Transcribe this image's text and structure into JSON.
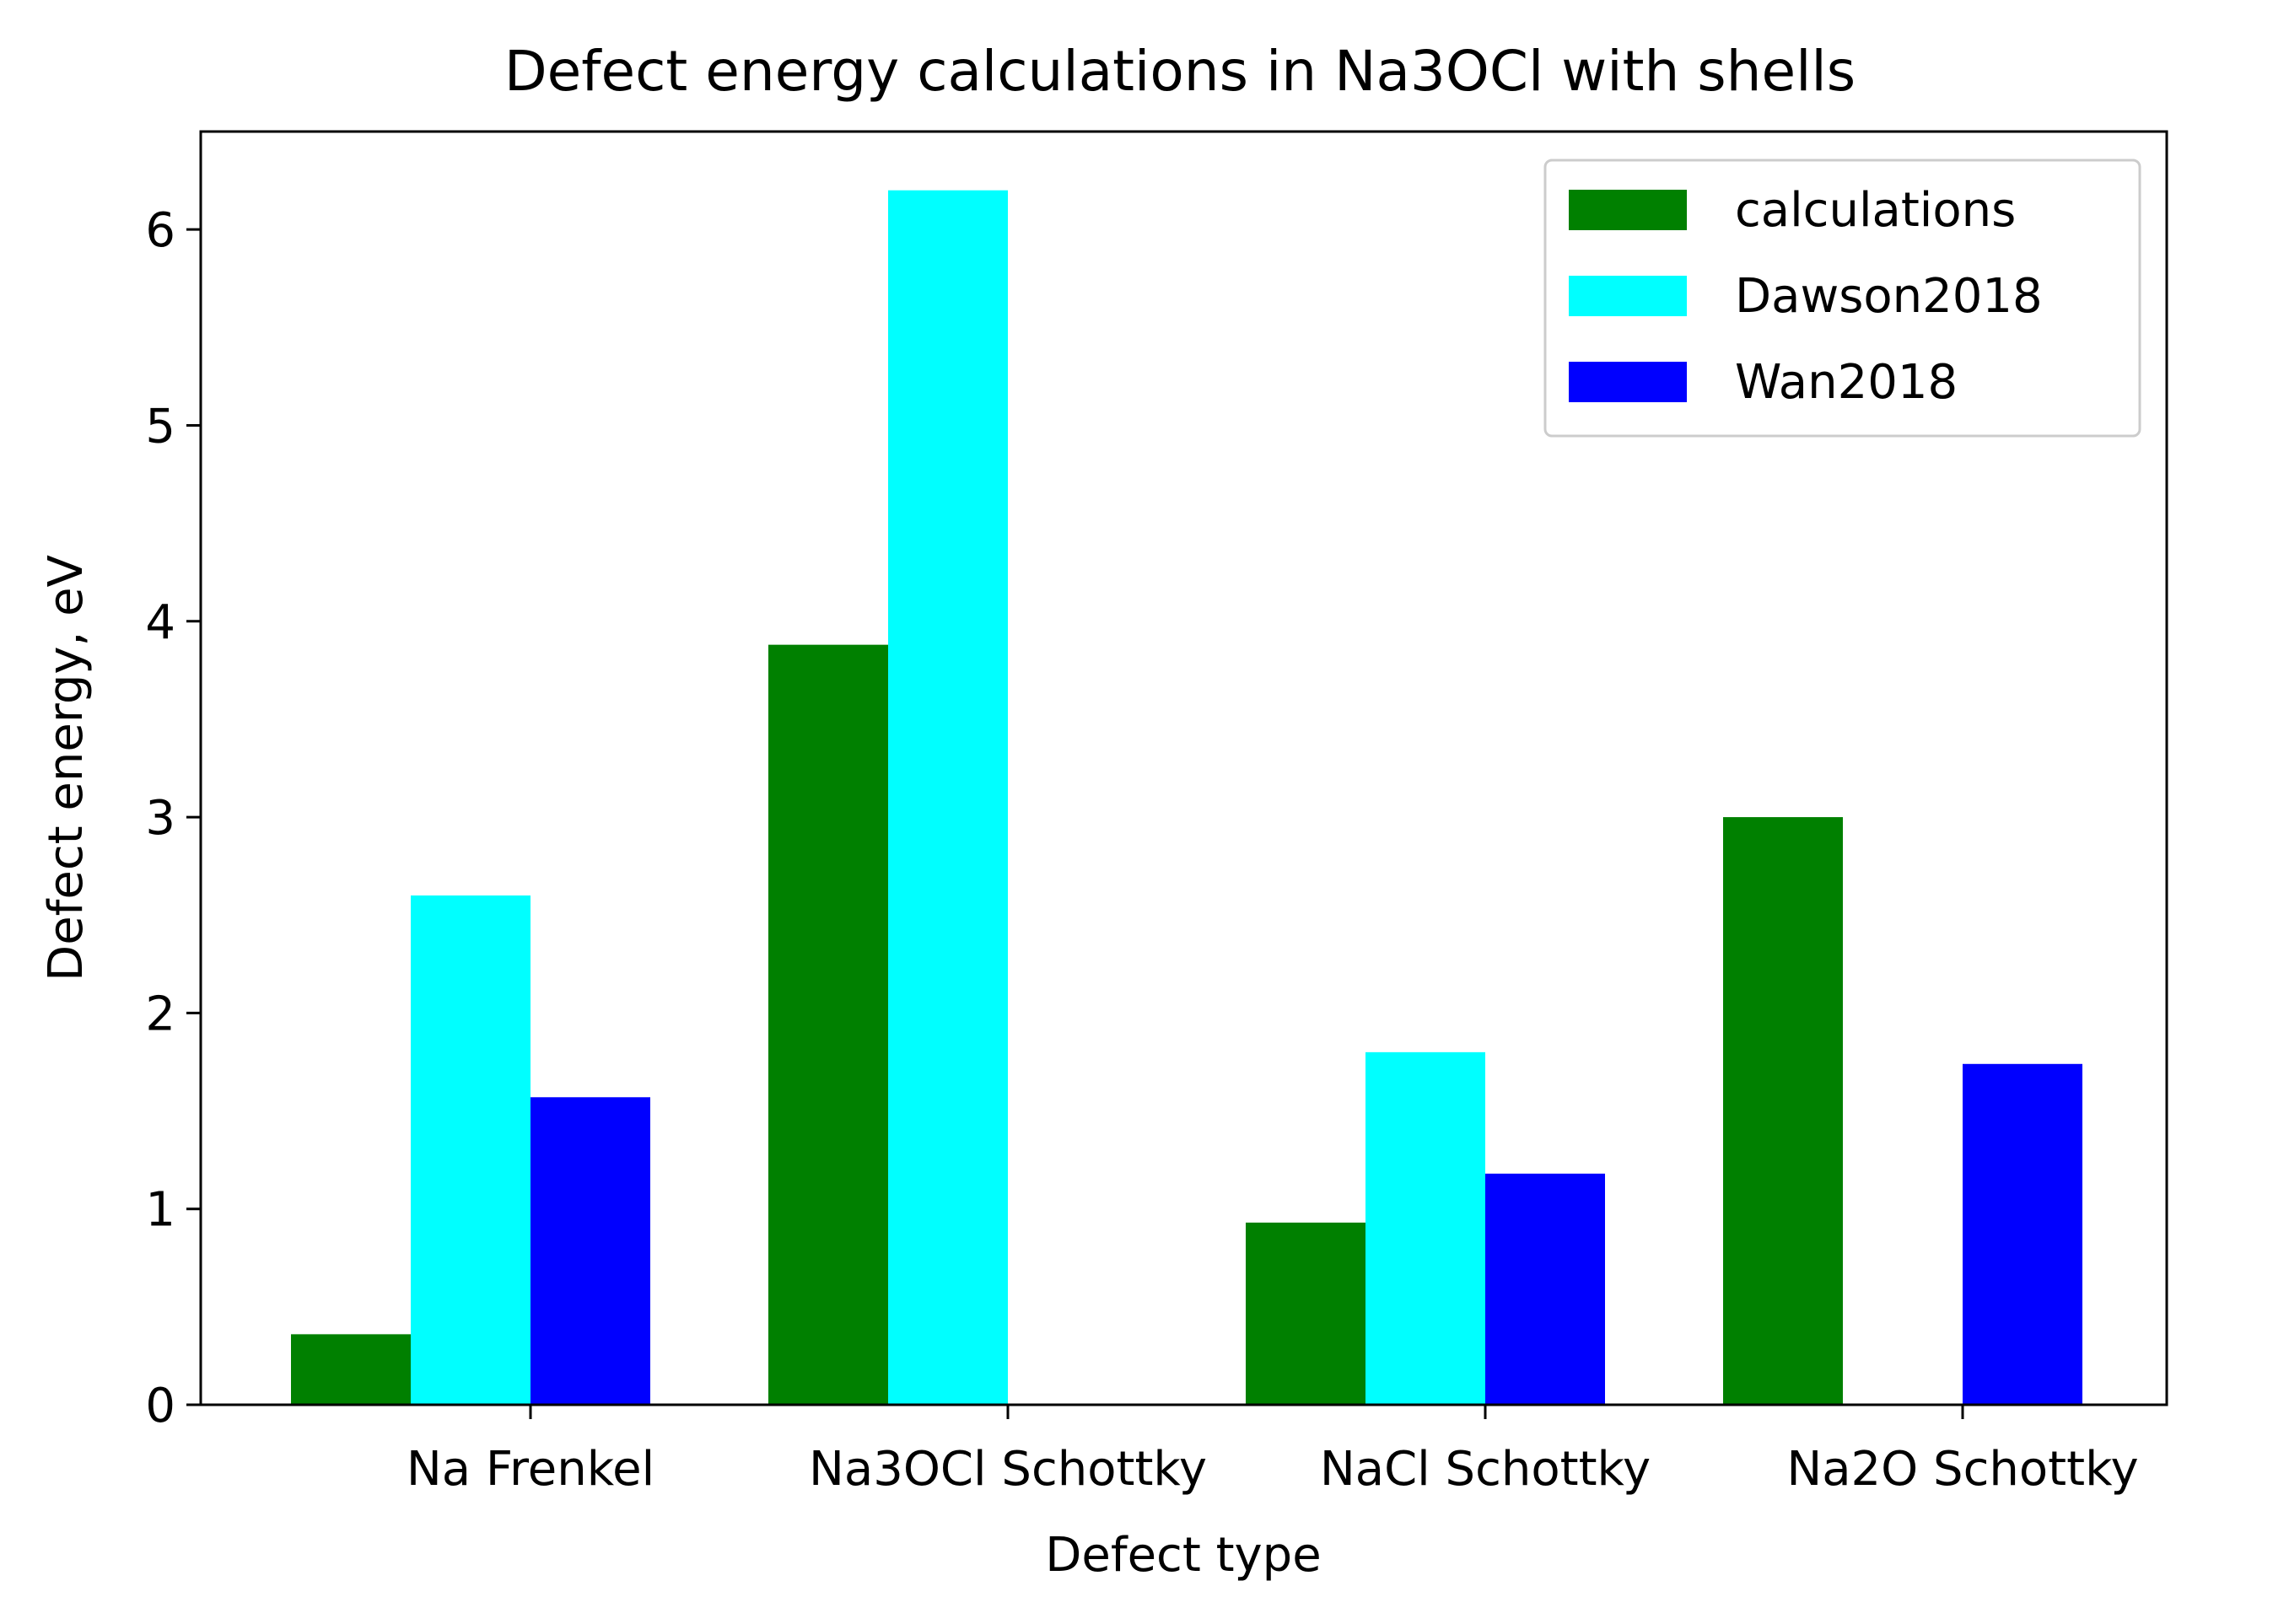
{
  "chart_data": {
    "type": "bar",
    "title": "Defect energy calculations in Na3OCl with shells",
    "xlabel": "Defect type",
    "ylabel": "Defect energy, eV",
    "categories": [
      "Na Frenkel",
      "Na3OCl Schottky",
      "NaCl Schottky",
      "Na2O Schottky"
    ],
    "ylim": [
      0,
      6.5
    ],
    "yticks": [
      "0",
      "1",
      "2",
      "3",
      "4",
      "5",
      "6"
    ],
    "series": [
      {
        "name": "calculations",
        "color": "#008000",
        "values": [
          0.36,
          3.88,
          0.93,
          3.0
        ]
      },
      {
        "name": "Dawson2018",
        "color": "#00ffff",
        "values": [
          2.6,
          6.2,
          1.8,
          null
        ]
      },
      {
        "name": "Wan2018",
        "color": "#0000ff",
        "values": [
          1.57,
          null,
          1.18,
          1.74
        ]
      }
    ],
    "legend_position": "top-right",
    "grid": false
  }
}
